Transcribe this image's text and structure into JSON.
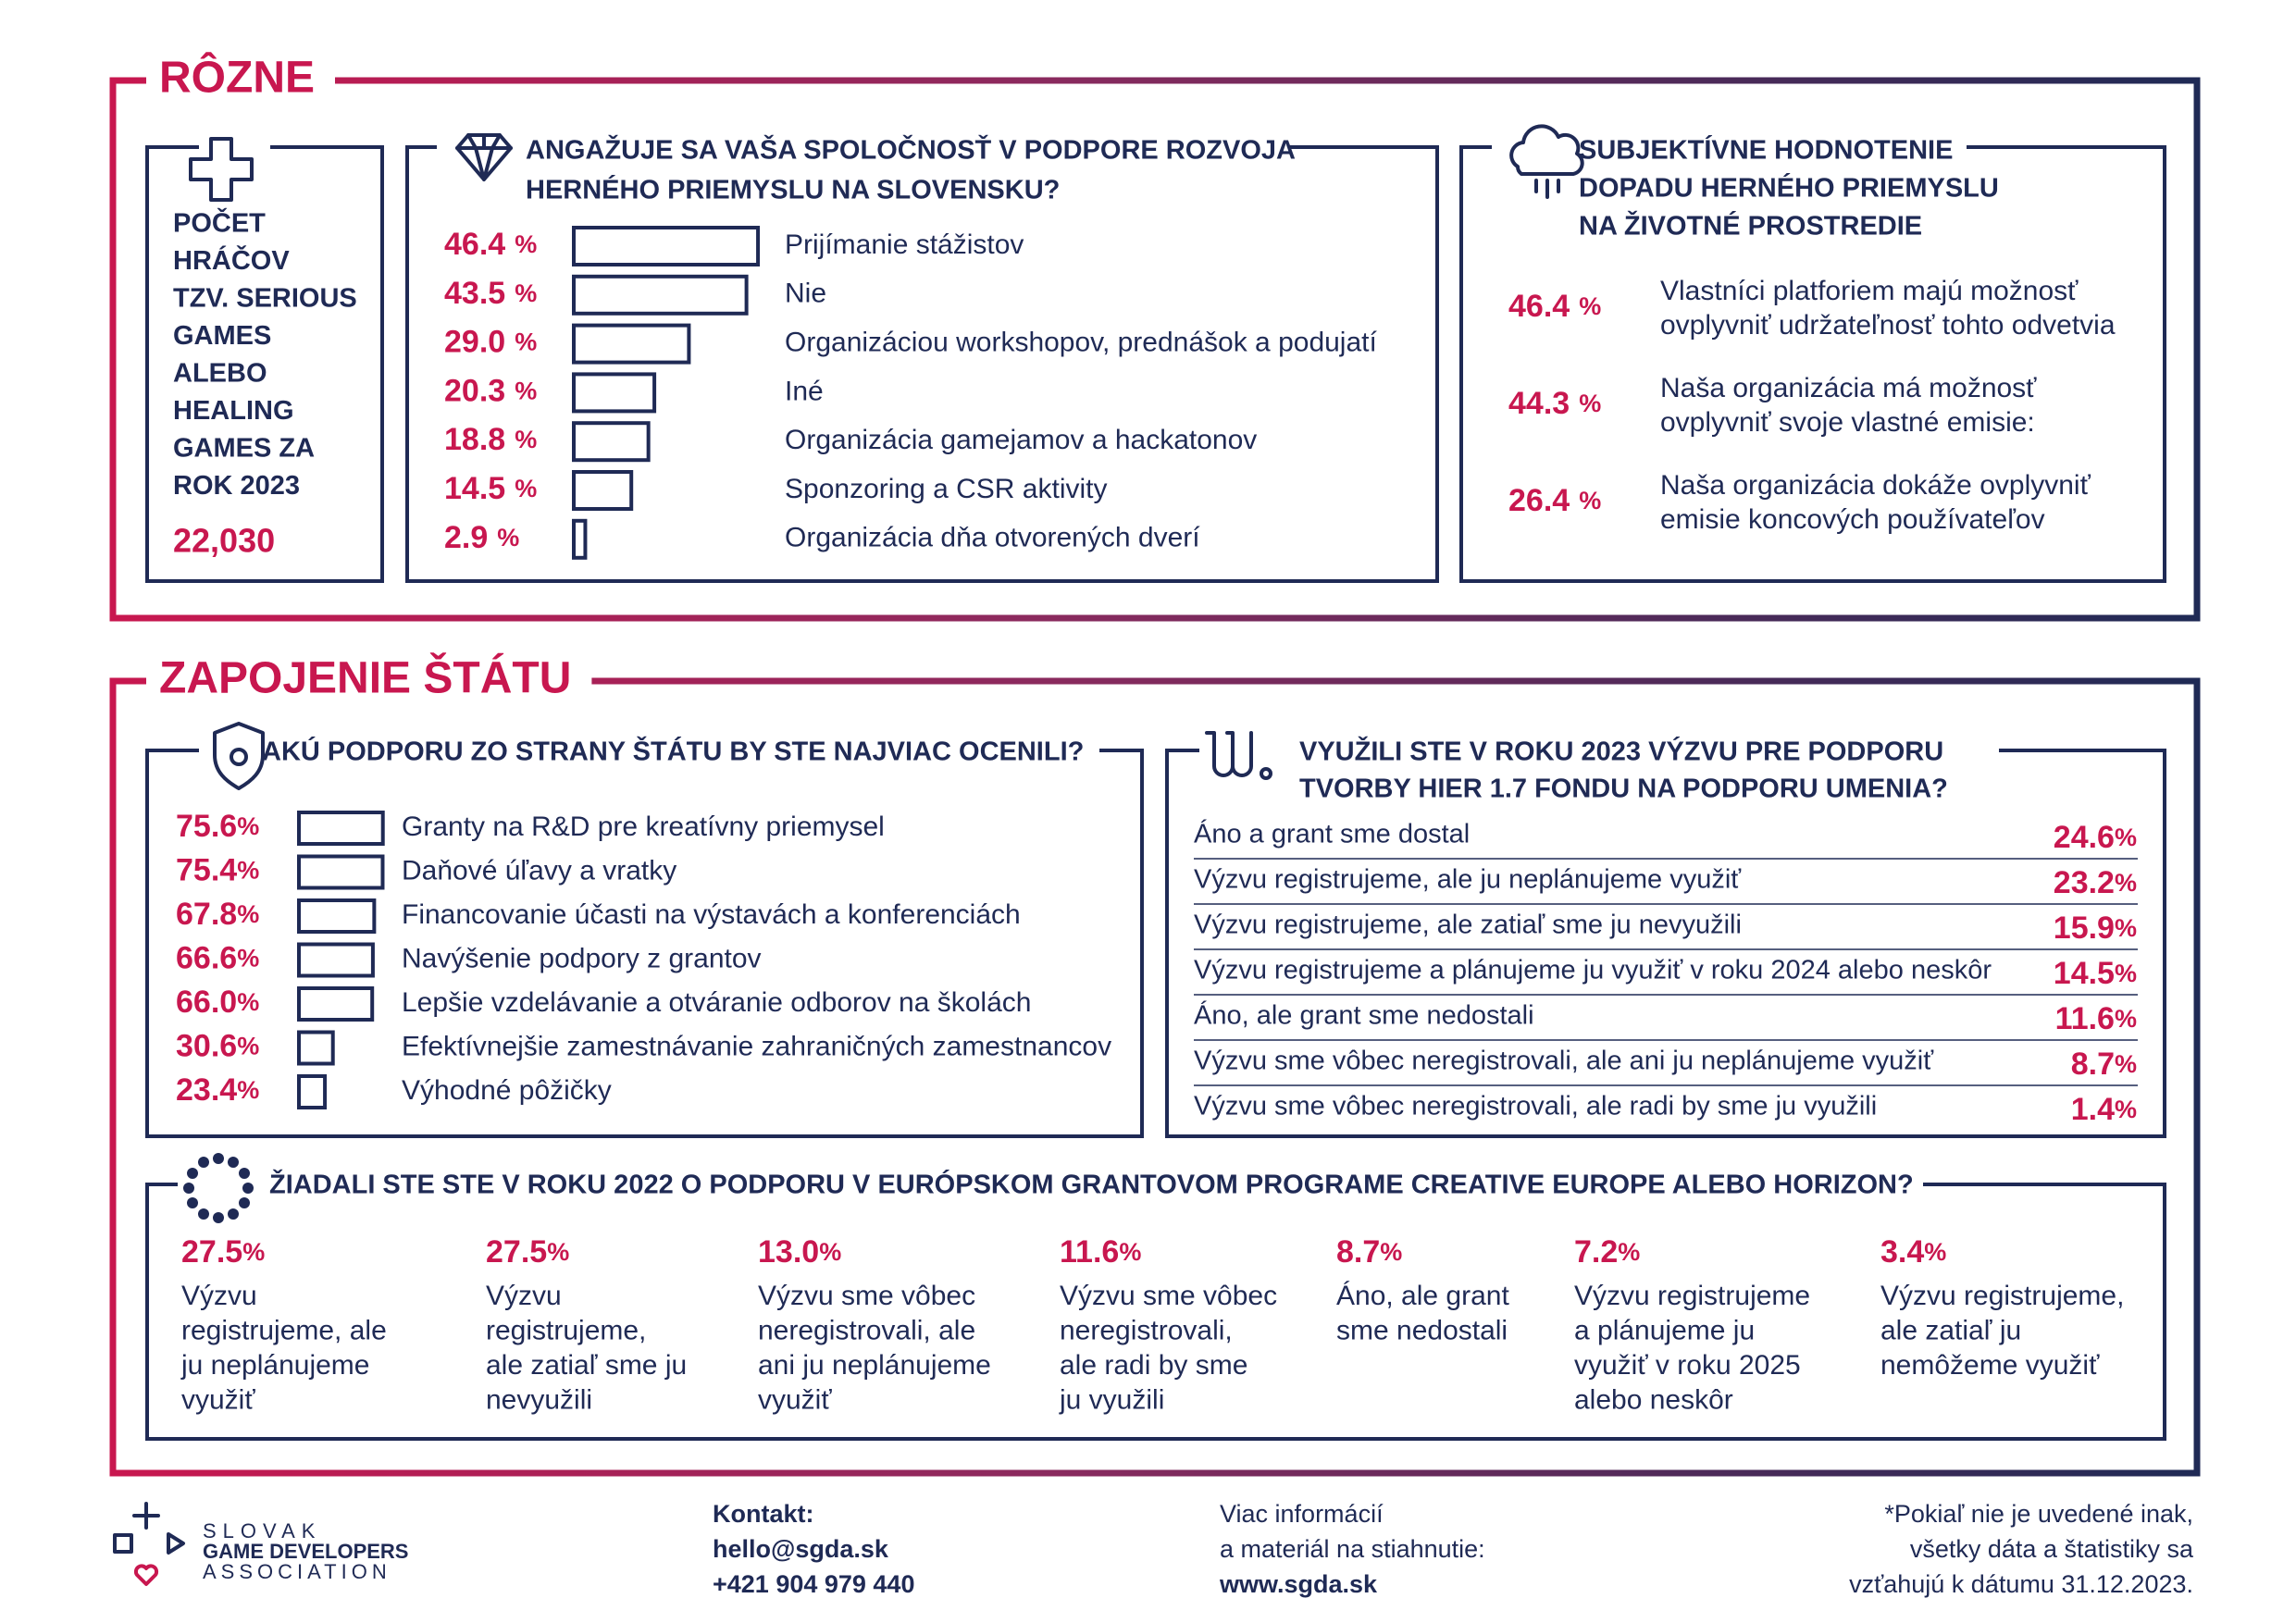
{
  "misc": {
    "title": "RÔZNE",
    "players": {
      "label_lines": [
        "POČET",
        "HRÁČOV",
        "TZV. SERIOUS",
        "GAMES",
        "ALEBO",
        "HEALING",
        "GAMES ZA",
        "ROK 2023"
      ],
      "value": "22,030"
    },
    "industry_support": {
      "title_lines": [
        "ANGAŽUJE SA VAŠA SPOLOČNOSŤ V PODPORE ROZVOJA",
        "HERNÉHO PRIEMYSLU NA SLOVENSKU?"
      ],
      "unit": "%",
      "items": [
        {
          "value": 46.4,
          "label": "Prijímanie stážistov"
        },
        {
          "value": 43.5,
          "label": "Nie"
        },
        {
          "value": 29.0,
          "value_label": "29.0",
          "label": "Organizáciou workshopov, prednášok a podujatí"
        },
        {
          "value": 20.3,
          "label": "Iné"
        },
        {
          "value": 18.8,
          "label": "Organizácia gamejamov a hackatonov"
        },
        {
          "value": 14.5,
          "label": "Sponzoring a CSR aktivity"
        },
        {
          "value": 2.9,
          "label": "Organizácia dňa otvorených dverí"
        }
      ]
    },
    "environment": {
      "title_lines": [
        "SUBJEKTÍVNE HODNOTENIE",
        "DOPADU HERNÉHO PRIEMYSLU",
        "NA ŽIVOTNÉ PROSTREDIE"
      ],
      "unit": "%",
      "items": [
        {
          "value": "46.4",
          "label_lines": [
            "Vlastníci platforiem majú možnosť",
            "ovplyvniť udržateľnosť tohto odvetvia"
          ]
        },
        {
          "value": "44.3",
          "label_lines": [
            "Naša organizácia má možnosť",
            "ovplyvniť svoje vlastné emisie:"
          ]
        },
        {
          "value": "26.4",
          "label_lines": [
            "Naša organizácia dokáže ovplyvniť",
            "emisie koncových používateľov"
          ]
        }
      ]
    }
  },
  "state": {
    "title": "ZAPOJENIE ŠTÁTU",
    "preferred_support": {
      "title": "AKÚ PODPORU ZO STRANY ŠTÁTU BY STE NAJVIAC OCENILI?",
      "unit": "%",
      "items": [
        {
          "value": 75.6,
          "label": "Granty na R&D pre kreatívny priemysel"
        },
        {
          "value": 75.4,
          "label": "Daňové úľavy a vratky"
        },
        {
          "value": 67.8,
          "label": "Financovanie účasti na výstavách a konferenciách"
        },
        {
          "value": 66.6,
          "label": "Navýšenie podpory z grantov"
        },
        {
          "value": 66.0,
          "value_label": "66.0",
          "label": "Lepšie vzdelávanie a otváranie odborov na školách"
        },
        {
          "value": 30.6,
          "label": "Efektívnejšie zamestnávanie zahraničných zamestnancov"
        },
        {
          "value": 23.4,
          "label": "Výhodné pôžičky"
        }
      ]
    },
    "art_fund": {
      "title_lines": [
        "VYUŽILI STE V ROKU 2023 VÝZVU PRE PODPORU",
        "TVORBY HIER 1.7 FONDU NA PODPORU UMENIA?"
      ],
      "unit": "%",
      "items": [
        {
          "label": "Áno a grant sme dostal",
          "value": "24.6"
        },
        {
          "label": "Výzvu registrujeme, ale ju neplánujeme využiť",
          "value": "23.2"
        },
        {
          "label": "Výzvu registrujeme, ale zatiaľ sme ju nevyužili",
          "value": "15.9"
        },
        {
          "label": "Výzvu registrujeme a plánujeme ju využiť v roku 2024 alebo neskôr",
          "value": "14.5"
        },
        {
          "label": "Áno, ale grant sme nedostali",
          "value": "11.6"
        },
        {
          "label": "Výzvu sme vôbec neregistrovali, ale ani ju neplánujeme využiť",
          "value": "8.7"
        },
        {
          "label": "Výzvu sme vôbec neregistrovali, ale radi by sme ju využili",
          "value": "1.4"
        }
      ]
    },
    "creative_europe": {
      "title": "ŽIADALI STE STE V ROKU 2022 O PODPORU V EURÓPSKOM GRANTOVOM PROGRAME CREATIVE EUROPE ALEBO HORIZON?",
      "unit": "%",
      "items": [
        {
          "value": "27.5",
          "label_lines": [
            "Výzvu",
            "registrujeme, ale",
            "ju neplánujeme",
            "využiť"
          ]
        },
        {
          "value": "27.5",
          "label_lines": [
            "Výzvu",
            "registrujeme,",
            "ale zatiaľ sme ju",
            "nevyužili"
          ]
        },
        {
          "value": "13.0",
          "label_lines": [
            "Výzvu sme vôbec",
            "neregistrovali, ale",
            "ani ju neplánujeme",
            "využiť"
          ]
        },
        {
          "value": "11.6",
          "label_lines": [
            "Výzvu sme vôbec",
            "neregistrovali,",
            "ale radi by sme",
            "ju využili"
          ]
        },
        {
          "value": "8.7",
          "label_lines": [
            "Áno, ale grant",
            "sme nedostali"
          ]
        },
        {
          "value": "7.2",
          "label_lines": [
            "Výzvu registrujeme",
            "a plánujeme ju",
            "využiť v roku 2025",
            "alebo neskôr"
          ]
        },
        {
          "value": "3.4",
          "label_lines": [
            "Výzvu registrujeme,",
            "ale zatiaľ ju",
            "nemôžeme využiť"
          ]
        }
      ]
    }
  },
  "footer": {
    "logo_lines": [
      "SLOVAK",
      "GAME DEVELOPERS",
      "ASSOCIATION"
    ],
    "contact_label": "Kontakt:",
    "email": "hello@sgda.sk",
    "phone": "+421 904 979 440",
    "more_lines": [
      "Viac informácií",
      "a materiál na stiahnutie:"
    ],
    "website": "www.sgda.sk",
    "note_lines": [
      "*Pokiaľ nie je uvedené inak,",
      "všetky dáta a štatistiky sa",
      "vzťahujú k dátumu 31.12.2023."
    ]
  }
}
